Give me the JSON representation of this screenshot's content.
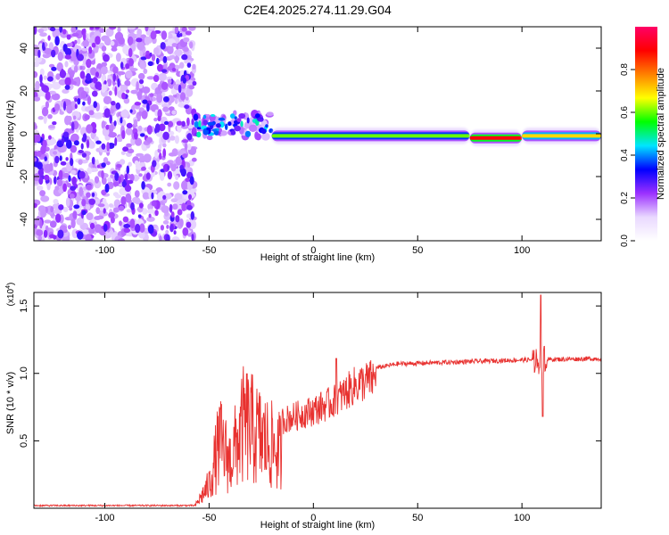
{
  "chart_data": [
    {
      "type": "heatmap",
      "title": "C2E4.2025.274.11.29.G04",
      "xlabel": "Height of straight line (km)",
      "ylabel": "Frequency (Hz)",
      "xlim": [
        -134,
        138
      ],
      "ylim": [
        -50,
        50
      ],
      "xticks": [
        -100,
        -50,
        0,
        50,
        100
      ],
      "yticks": [
        -40,
        -20,
        0,
        20,
        40
      ],
      "noise_region_km": [
        -134,
        -57
      ],
      "signal_segments": [
        {
          "x0": -57,
          "x1": -20,
          "freq_hz": 4,
          "amplitude": 0.35,
          "character": "scattered blobs"
        },
        {
          "x0": -20,
          "x1": 75,
          "freq_hz": -1,
          "amplitude": 0.6,
          "character": "continuous line"
        },
        {
          "x0": 75,
          "x1": 100,
          "freq_hz": -2,
          "amplitude": 0.9,
          "character": "strong line"
        },
        {
          "x0": 100,
          "x1": 138,
          "freq_hz": -1,
          "amplitude": 0.7,
          "character": "continuous line"
        }
      ],
      "colorbar": {
        "label": "Normalized spectral amplitude",
        "range": [
          0,
          1
        ],
        "ticks": [
          "0.0",
          "0.2",
          "0.4",
          "0.6",
          "0.8"
        ],
        "colors": [
          "#ffffff",
          "#e9d8ff",
          "#9b30ff",
          "#0000ff",
          "#00e5ff",
          "#00ff00",
          "#ffff00",
          "#ff8000",
          "#ff0000",
          "#ff0066"
        ]
      }
    },
    {
      "type": "line",
      "title": "",
      "xlabel": "Height of straight line (km)",
      "ylabel": "SNR (10 * v/v)",
      "scale_label": "(x10",
      "scale_exp": "4",
      "scale_close": ")",
      "xlim": [
        -134,
        138
      ],
      "ylim": [
        0,
        1.6
      ],
      "xticks": [
        -100,
        -50,
        0,
        50,
        100
      ],
      "yticks": [
        "0.5",
        "1.0",
        "1.5"
      ],
      "color": "#e8312f",
      "series_envelope": [
        {
          "x": -134,
          "y": 0.02
        },
        {
          "x": -57,
          "y": 0.02
        },
        {
          "x": -50,
          "y": 0.3
        },
        {
          "x": -45,
          "y": 0.85
        },
        {
          "x": -40,
          "y": 0.6
        },
        {
          "x": -33,
          "y": 1.1
        },
        {
          "x": -25,
          "y": 0.9
        },
        {
          "x": -15,
          "y": 0.7
        },
        {
          "x": 0,
          "y": 0.78
        },
        {
          "x": 10,
          "y": 0.85
        },
        {
          "x": 20,
          "y": 0.98
        },
        {
          "x": 30,
          "y": 1.04
        },
        {
          "x": 40,
          "y": 1.07
        },
        {
          "x": 60,
          "y": 1.08
        },
        {
          "x": 80,
          "y": 1.09
        },
        {
          "x": 100,
          "y": 1.1
        },
        {
          "x": 138,
          "y": 1.11
        }
      ],
      "spikes": [
        {
          "x": 11,
          "y": 1.11
        },
        {
          "x": 109,
          "y": 1.58
        },
        {
          "x": 110,
          "y": 0.68
        }
      ]
    }
  ]
}
